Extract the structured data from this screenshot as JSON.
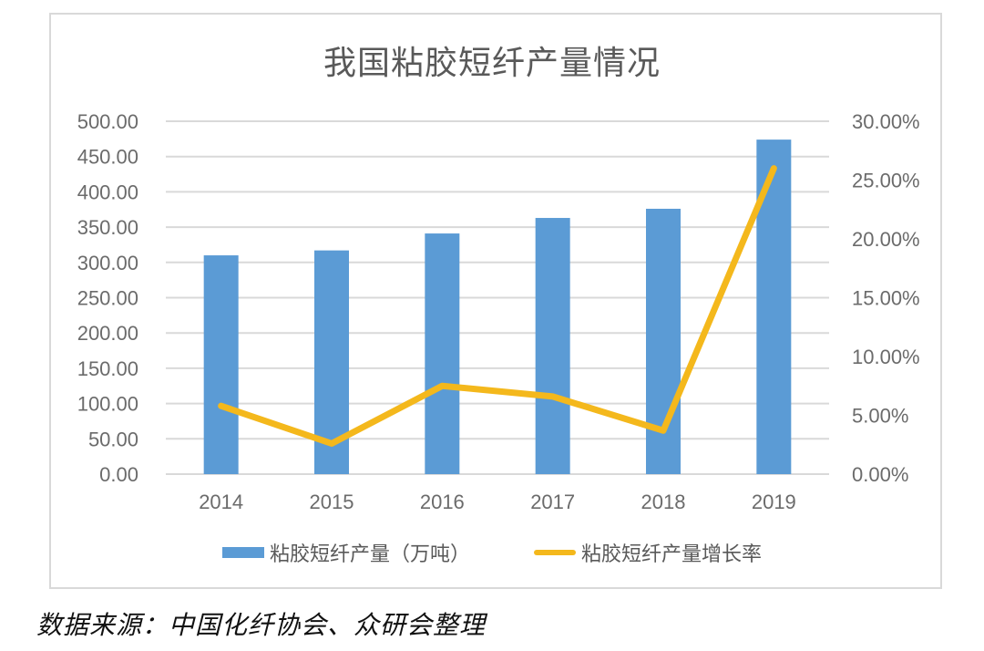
{
  "chart_data": {
    "type": "bar",
    "title": "我国粘胶短纤产量情况",
    "categories": [
      "2014",
      "2015",
      "2016",
      "2017",
      "2018",
      "2019"
    ],
    "series": [
      {
        "name": "粘胶短纤产量（万吨）",
        "type": "bar",
        "axis": "left",
        "color": "#5b9bd5",
        "values": [
          310,
          317,
          341,
          363,
          376,
          474
        ]
      },
      {
        "name": "粘胶短纤产量增长率",
        "type": "line",
        "axis": "right",
        "color": "#f4b81c",
        "values": [
          5.8,
          2.6,
          7.5,
          6.6,
          3.7,
          26.0
        ],
        "unit": "%"
      }
    ],
    "xlabel": "",
    "ylabel": "",
    "ylim": [
      0,
      500
    ],
    "y_ticks": [
      "0.00",
      "50.00",
      "100.00",
      "150.00",
      "200.00",
      "250.00",
      "300.00",
      "350.00",
      "400.00",
      "450.00",
      "500.00"
    ],
    "y2lim": [
      0,
      30
    ],
    "y2_ticks": [
      "0.00%",
      "5.00%",
      "10.00%",
      "15.00%",
      "20.00%",
      "25.00%",
      "30.00%"
    ],
    "grid": true,
    "legend_position": "bottom"
  },
  "legend": {
    "bar_label": "粘胶短纤产量（万吨）",
    "line_label": "粘胶短纤产量增长率"
  },
  "source_note": "数据来源：中国化纤协会、众研会整理"
}
